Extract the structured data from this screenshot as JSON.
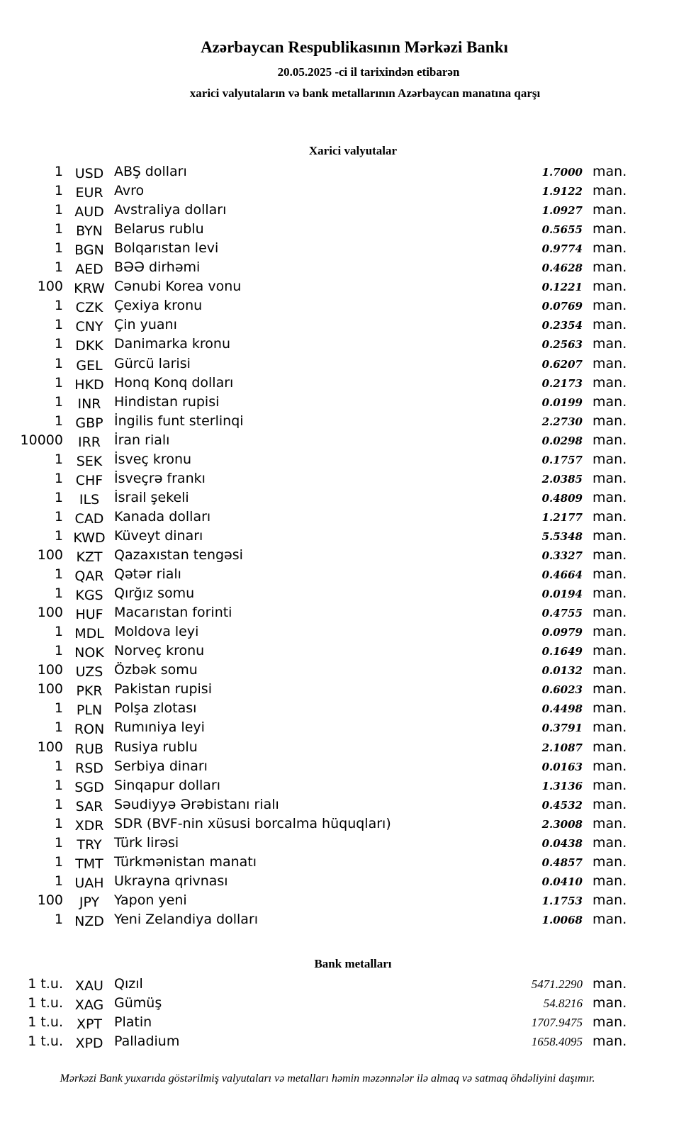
{
  "header": {
    "title": "Azərbaycan Respublikasının Mərkəzi Bankı",
    "date_line": "20.05.2025 -ci il tarixindən etibarən",
    "subtitle": "xarici valyutaların və bank metallarının Azərbaycan manatına qarşı"
  },
  "unit_label": "man.",
  "currencies": {
    "heading": "Xarici valyutalar",
    "rows": [
      {
        "nominal": "1",
        "code": "USD",
        "name": "ABŞ dolları",
        "rate": "1.7000"
      },
      {
        "nominal": "1",
        "code": "EUR",
        "name": "Avro",
        "rate": "1.9122"
      },
      {
        "nominal": "1",
        "code": "AUD",
        "name": "Avstraliya dolları",
        "rate": "1.0927"
      },
      {
        "nominal": "1",
        "code": "BYN",
        "name": "Belarus rublu",
        "rate": "0.5655"
      },
      {
        "nominal": "1",
        "code": "BGN",
        "name": "Bolqarıstan levi",
        "rate": "0.9774"
      },
      {
        "nominal": "1",
        "code": "AED",
        "name": "BƏƏ dirhəmi",
        "rate": "0.4628"
      },
      {
        "nominal": "100",
        "code": "KRW",
        "name": "Cənubi Korea vonu",
        "rate": "0.1221"
      },
      {
        "nominal": "1",
        "code": "CZK",
        "name": "Çexiya kronu",
        "rate": "0.0769"
      },
      {
        "nominal": "1",
        "code": "CNY",
        "name": "Çin yuanı",
        "rate": "0.2354"
      },
      {
        "nominal": "1",
        "code": "DKK",
        "name": "Danimarka kronu",
        "rate": "0.2563"
      },
      {
        "nominal": "1",
        "code": "GEL",
        "name": "Gürcü larisi",
        "rate": "0.6207"
      },
      {
        "nominal": "1",
        "code": "HKD",
        "name": "Honq Konq dolları",
        "rate": "0.2173"
      },
      {
        "nominal": "1",
        "code": "INR",
        "name": "Hindistan rupisi",
        "rate": "0.0199"
      },
      {
        "nominal": "1",
        "code": "GBP",
        "name": "İngilis funt sterlinqi",
        "rate": "2.2730"
      },
      {
        "nominal": "10000",
        "code": "IRR",
        "name": "İran rialı",
        "rate": "0.0298"
      },
      {
        "nominal": "1",
        "code": "SEK",
        "name": "İsveç kronu",
        "rate": "0.1757"
      },
      {
        "nominal": "1",
        "code": "CHF",
        "name": "İsveçrə frankı",
        "rate": "2.0385"
      },
      {
        "nominal": "1",
        "code": "ILS",
        "name": "İsrail şekeli",
        "rate": "0.4809"
      },
      {
        "nominal": "1",
        "code": "CAD",
        "name": "Kanada dolları",
        "rate": "1.2177"
      },
      {
        "nominal": "1",
        "code": "KWD",
        "name": "Küveyt dinarı",
        "rate": "5.5348"
      },
      {
        "nominal": "100",
        "code": "KZT",
        "name": "Qazaxıstan tengəsi",
        "rate": "0.3327"
      },
      {
        "nominal": "1",
        "code": "QAR",
        "name": "Qətər rialı",
        "rate": "0.4664"
      },
      {
        "nominal": "1",
        "code": "KGS",
        "name": "Qırğız somu",
        "rate": "0.0194"
      },
      {
        "nominal": "100",
        "code": "HUF",
        "name": "Macarıstan forinti",
        "rate": "0.4755"
      },
      {
        "nominal": "1",
        "code": "MDL",
        "name": "Moldova leyi",
        "rate": "0.0979"
      },
      {
        "nominal": "1",
        "code": "NOK",
        "name": "Norveç kronu",
        "rate": "0.1649"
      },
      {
        "nominal": "100",
        "code": "UZS",
        "name": "Özbək somu",
        "rate": "0.0132"
      },
      {
        "nominal": "100",
        "code": "PKR",
        "name": "Pakistan rupisi",
        "rate": "0.6023"
      },
      {
        "nominal": "1",
        "code": "PLN",
        "name": "Polşa zlotası",
        "rate": "0.4498"
      },
      {
        "nominal": "1",
        "code": "RON",
        "name": "Rumıniya leyi",
        "rate": "0.3791"
      },
      {
        "nominal": "100",
        "code": "RUB",
        "name": "Rusiya rublu",
        "rate": "2.1087"
      },
      {
        "nominal": "1",
        "code": "RSD",
        "name": "Serbiya dinarı",
        "rate": "0.0163"
      },
      {
        "nominal": "1",
        "code": "SGD",
        "name": "Sinqapur dolları",
        "rate": "1.3136"
      },
      {
        "nominal": "1",
        "code": "SAR",
        "name": "Səudiyyə Ərəbistanı rialı",
        "rate": "0.4532"
      },
      {
        "nominal": "1",
        "code": "XDR",
        "name": "SDR (BVF-nin xüsusi borcalma hüquqları)",
        "rate": "2.3008"
      },
      {
        "nominal": "1",
        "code": "TRY",
        "name": "Türk lirəsi",
        "rate": "0.0438"
      },
      {
        "nominal": "1",
        "code": "TMT",
        "name": "Türkmənistan manatı",
        "rate": "0.4857"
      },
      {
        "nominal": "1",
        "code": "UAH",
        "name": "Ukrayna qrivnası",
        "rate": "0.0410"
      },
      {
        "nominal": "100",
        "code": "JPY",
        "name": "Yapon yeni",
        "rate": "1.1753"
      },
      {
        "nominal": "1",
        "code": "NZD",
        "name": "Yeni Zelandiya dolları",
        "rate": "1.0068"
      }
    ]
  },
  "metals": {
    "heading": "Bank metalları",
    "rows": [
      {
        "nominal": "1 t.u.",
        "code": "XAU",
        "name": "Qızıl",
        "rate": "5471.2290"
      },
      {
        "nominal": "1 t.u.",
        "code": "XAG",
        "name": "Gümüş",
        "rate": "54.8216"
      },
      {
        "nominal": "1 t.u.",
        "code": "XPT",
        "name": "Platin",
        "rate": "1707.9475"
      },
      {
        "nominal": "1 t.u.",
        "code": "XPD",
        "name": "Palladium",
        "rate": "1658.4095"
      }
    ]
  },
  "footer": "Mərkəzi Bank yuxarıda göstərilmiş valyutaları və metalları həmin məzənnələr ilə almaq və satmaq öhdəliyini daşımır."
}
